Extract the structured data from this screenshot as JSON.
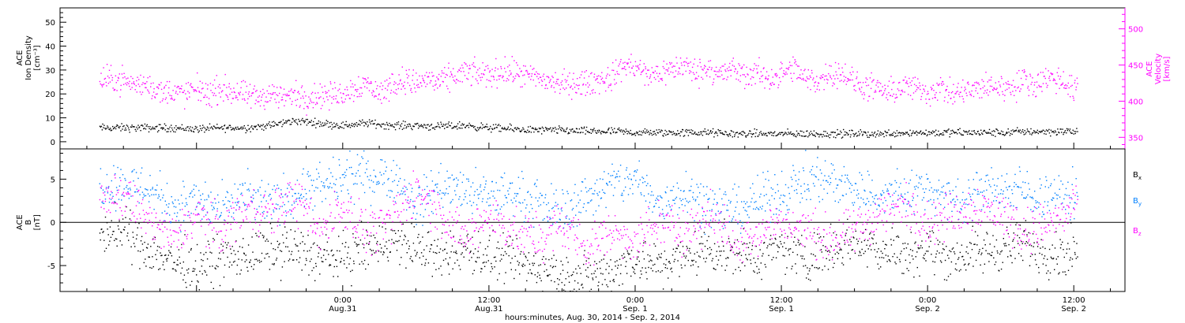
{
  "colors": {
    "density": "#000000",
    "velocity": "#ff00ff",
    "bx": "#000000",
    "by": "#0080ff",
    "bz": "#ff00ff",
    "axis": "#000000"
  },
  "chart_data": [
    {
      "type": "scatter",
      "panel": "plasma",
      "ylabel_lines": [
        "ACE",
        "Ion Density",
        "[cm⁻³]"
      ],
      "ylim": [
        -3,
        56
      ],
      "yticks": [
        0,
        10,
        20,
        30,
        40,
        50
      ],
      "y2label_lines": [
        "ACE",
        "Velocity",
        "[km/s]"
      ],
      "y2lim": [
        334,
        529
      ],
      "y2ticks": [
        350,
        400,
        450,
        500
      ],
      "series": [
        {
          "key": "density",
          "axis": "left",
          "x_hours": [
            -18,
            -16,
            -14,
            -12,
            -10,
            -8,
            -6,
            -4,
            -2,
            0,
            2,
            4,
            6,
            8,
            10,
            12,
            14,
            16,
            18,
            20,
            22,
            24,
            26,
            28,
            30,
            32,
            34,
            36,
            38,
            40,
            42,
            44,
            46,
            48,
            50,
            52,
            54,
            56,
            58,
            60
          ],
          "values": [
            6,
            6,
            6,
            5.5,
            6,
            6,
            7,
            9,
            8,
            7,
            8,
            7,
            7,
            6.5,
            7,
            6,
            5.5,
            5,
            5,
            4.5,
            4.5,
            4,
            4,
            4,
            4,
            3.5,
            3.5,
            3.5,
            3.5,
            3.5,
            3.5,
            3.5,
            4,
            4,
            4,
            4,
            4,
            4.5,
            4.5,
            4.5
          ]
        },
        {
          "key": "velocity",
          "axis": "right",
          "x_hours": [
            -18,
            -17,
            -16,
            -15,
            -14,
            -13,
            -12,
            -11,
            -10,
            -9,
            -8,
            -7,
            -6,
            -5,
            -4,
            -3,
            -2,
            -1,
            0,
            1,
            2,
            3,
            4,
            5,
            6,
            7,
            8,
            9,
            10,
            11,
            12,
            13,
            14,
            15,
            16,
            17,
            18,
            19,
            20,
            21,
            22,
            23,
            24,
            25,
            26,
            27,
            28,
            29,
            30,
            31,
            32,
            33,
            34,
            35,
            36,
            37,
            38,
            39,
            40,
            41,
            42,
            43,
            44,
            45,
            46,
            47,
            48,
            49,
            50,
            51,
            52,
            53,
            54,
            55,
            56,
            57,
            58,
            59,
            60
          ],
          "values": [
            430,
            422,
            425,
            412,
            415,
            410,
            418,
            410,
            418,
            413,
            408,
            405,
            412,
            405,
            410,
            405,
            410,
            408,
            412,
            420,
            425,
            410,
            425,
            430,
            425,
            432,
            425,
            435,
            440,
            438,
            437,
            442,
            440,
            435,
            432,
            428,
            424,
            425,
            425,
            430,
            432,
            450,
            448,
            435,
            440,
            445,
            450,
            440,
            448,
            437,
            445,
            435,
            440,
            432,
            438,
            445,
            430,
            428,
            440,
            440,
            425,
            420,
            415,
            412,
            422,
            418,
            412,
            420,
            408,
            415,
            415,
            422,
            420,
            420,
            430,
            425,
            435,
            428,
            416
          ]
        }
      ]
    },
    {
      "type": "scatter",
      "panel": "magnetic",
      "ylabel_lines": [
        "ACE",
        "B",
        "[nT]"
      ],
      "ylim": [
        -8,
        8.5
      ],
      "yticks": [
        -5,
        0,
        5
      ],
      "xlabel": "hours:minutes, Aug. 30, 2014 - Sep.  2, 2014",
      "xlim_hours": [
        -23.2,
        64.2
      ],
      "xticks": [
        {
          "hour": 0,
          "time": "0:00",
          "date": "Aug.31"
        },
        {
          "hour": 12,
          "time": "12:00",
          "date": "Aug.31"
        },
        {
          "hour": 24,
          "time": "0:00",
          "date": "Sep. 1"
        },
        {
          "hour": 36,
          "time": "12:00",
          "date": "Sep. 1"
        },
        {
          "hour": 48,
          "time": "0:00",
          "date": "Sep. 2"
        },
        {
          "hour": 60,
          "time": "12:00",
          "date": "Sep. 2"
        }
      ],
      "series": [
        {
          "key": "bx",
          "name_main": "B",
          "name_sub": "x",
          "x_hours": [
            -18,
            -16,
            -14,
            -12,
            -10,
            -8,
            -6,
            -4,
            -2,
            0,
            2,
            4,
            6,
            8,
            10,
            12,
            14,
            16,
            18,
            20,
            22,
            24,
            26,
            28,
            30,
            32,
            34,
            36,
            38,
            40,
            42,
            44,
            46,
            48,
            50,
            52,
            54,
            56,
            58,
            60
          ],
          "values": [
            -1,
            -3,
            -4.5,
            -5,
            -4,
            -4,
            -3,
            -3,
            -4,
            -4,
            -3,
            -2,
            -3,
            -4,
            -3,
            -4,
            -4.5,
            -5,
            -6,
            -6,
            -5.5,
            -4,
            -5,
            -4,
            -3,
            -3.5,
            -4,
            -3,
            -4,
            -3,
            -2,
            -3,
            -3.5,
            -3,
            -4,
            -3.5,
            -3,
            -2.5,
            -3.5,
            -3.5
          ]
        },
        {
          "key": "by",
          "name_main": "B",
          "name_sub": "y",
          "x_hours": [
            -18,
            -16,
            -14,
            -12,
            -10,
            -8,
            -6,
            -4,
            -2,
            0,
            2,
            4,
            6,
            8,
            10,
            12,
            14,
            16,
            18,
            20,
            22,
            24,
            26,
            28,
            30,
            32,
            34,
            36,
            38,
            40,
            42,
            44,
            46,
            48,
            50,
            52,
            54,
            56,
            58,
            60
          ],
          "values": [
            4.5,
            4,
            2,
            2.5,
            1.5,
            3,
            2,
            3.5,
            4,
            5,
            5.5,
            5.5,
            2,
            4.5,
            3.5,
            3,
            3.5,
            2,
            1.5,
            3,
            4.5,
            5,
            2,
            4,
            2,
            1.5,
            2.5,
            3.5,
            5,
            5,
            4,
            3,
            3.5,
            4,
            2.5,
            3.5,
            4,
            3.5,
            3,
            3
          ]
        },
        {
          "key": "bz",
          "name_main": "B",
          "name_sub": "z",
          "x_hours": [
            -18,
            -16,
            -14,
            -12,
            -10,
            -8,
            -6,
            -4,
            -2,
            0,
            2,
            4,
            6,
            8,
            10,
            12,
            14,
            16,
            18,
            20,
            22,
            24,
            26,
            28,
            30,
            32,
            34,
            36,
            38,
            40,
            42,
            44,
            46,
            48,
            50,
            52,
            54,
            56,
            58,
            60
          ],
          "values": [
            3,
            0.5,
            -2,
            1,
            -1,
            2,
            1,
            3,
            -1,
            2,
            -1,
            0,
            4,
            1,
            -2,
            1,
            -1,
            -2,
            0,
            -3,
            -1,
            -2,
            0,
            -1,
            1,
            -2,
            -1,
            0,
            -1,
            -2,
            -1,
            1,
            2,
            0,
            1,
            2,
            1,
            -1,
            0,
            1.5
          ]
        }
      ]
    }
  ]
}
